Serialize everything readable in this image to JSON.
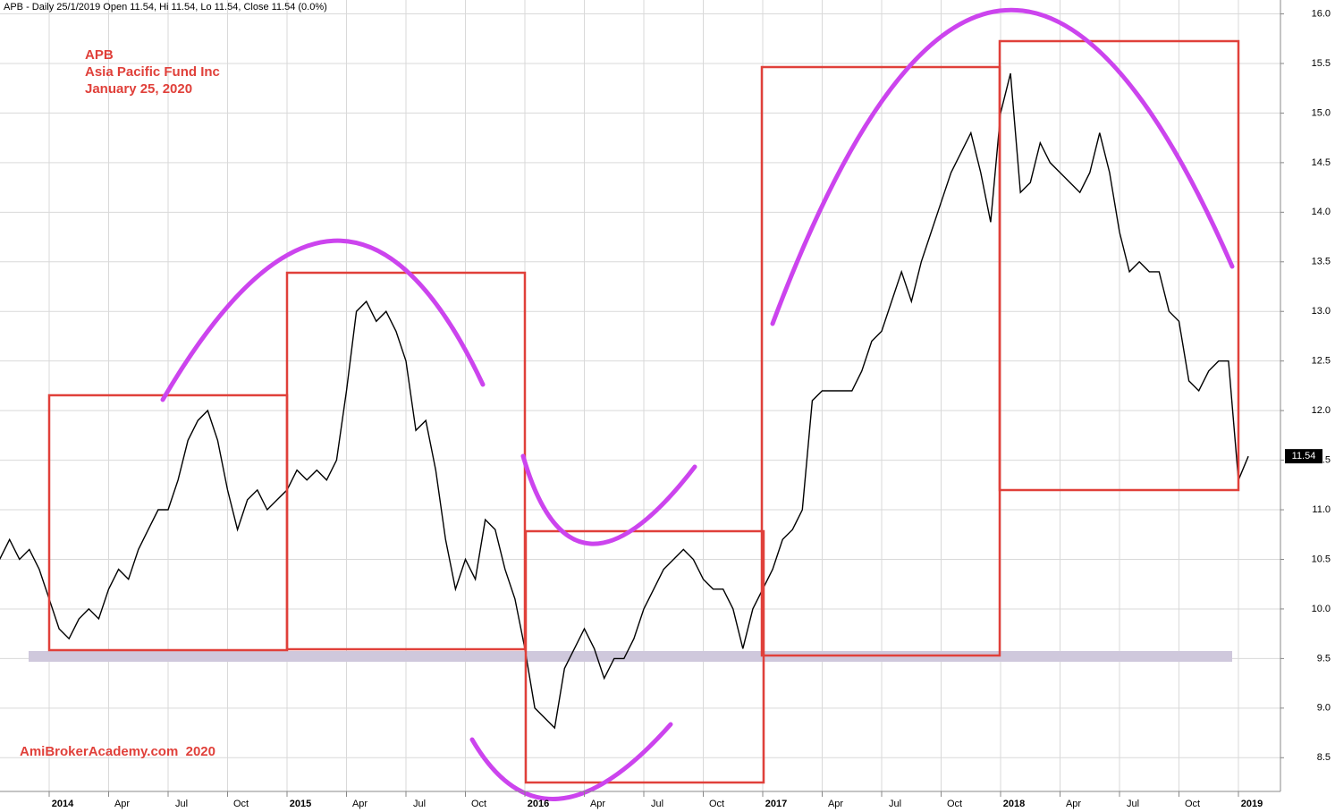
{
  "chart_data": {
    "type": "line",
    "title": "APB - Daily 25/1/2019 Open 11.54, Hi 11.54, Lo 11.54, Close 11.54 (0.0%)",
    "annotations": [
      "APB",
      "Asia Pacific Fund Inc",
      "January 25, 2020",
      "AmiBrokerAcademy.com  2020"
    ],
    "last_price": 11.54,
    "color": "#000000",
    "grid": true,
    "categories": [
      null,
      null,
      null,
      null,
      null,
      "2014",
      null,
      null,
      null,
      null,
      null,
      "Apr",
      null,
      null,
      null,
      null,
      null,
      "Jul",
      null,
      null,
      null,
      null,
      null,
      "Oct",
      null,
      null,
      null,
      null,
      null,
      "2015",
      null,
      null,
      null,
      null,
      null,
      "Apr",
      null,
      null,
      null,
      null,
      null,
      "Jul",
      null,
      null,
      null,
      null,
      null,
      "Oct",
      null,
      null,
      null,
      null,
      null,
      "2016",
      null,
      null,
      null,
      null,
      null,
      "Apr",
      null,
      null,
      null,
      null,
      null,
      "Jul",
      null,
      null,
      null,
      null,
      null,
      "Oct",
      null,
      null,
      null,
      null,
      null,
      "2017",
      null,
      null,
      null,
      null,
      null,
      "Apr",
      null,
      null,
      null,
      null,
      null,
      "Jul",
      null,
      null,
      null,
      null,
      null,
      "Oct",
      null,
      null,
      null,
      null,
      null,
      "2018",
      null,
      null,
      null,
      null,
      null,
      "Apr",
      null,
      null,
      null,
      null,
      null,
      "Jul",
      null,
      null,
      null,
      null,
      null,
      "Oct",
      null,
      null,
      null,
      null,
      null,
      "2019",
      null
    ],
    "values": [
      10.5,
      10.7,
      10.5,
      10.6,
      10.4,
      10.1,
      9.8,
      9.7,
      9.9,
      10.0,
      9.9,
      10.2,
      10.4,
      10.3,
      10.6,
      10.8,
      11.0,
      11.0,
      11.3,
      11.7,
      11.9,
      12.0,
      11.7,
      11.2,
      10.8,
      11.1,
      11.2,
      11.0,
      11.1,
      11.2,
      11.4,
      11.3,
      11.4,
      11.3,
      11.5,
      12.2,
      13.0,
      13.1,
      12.9,
      13.0,
      12.8,
      12.5,
      11.8,
      11.9,
      11.4,
      10.7,
      10.2,
      10.5,
      10.3,
      10.9,
      10.8,
      10.4,
      10.1,
      9.6,
      9.0,
      8.9,
      8.8,
      9.4,
      9.6,
      9.8,
      9.6,
      9.3,
      9.5,
      9.5,
      9.7,
      10.0,
      10.2,
      10.4,
      10.5,
      10.6,
      10.5,
      10.3,
      10.2,
      10.2,
      10.0,
      9.6,
      10.0,
      10.2,
      10.4,
      10.7,
      10.8,
      11.0,
      12.1,
      12.2,
      12.2,
      12.2,
      12.2,
      12.4,
      12.7,
      12.8,
      13.1,
      13.4,
      13.1,
      13.5,
      13.8,
      14.1,
      14.4,
      14.6,
      14.8,
      14.4,
      13.9,
      15.0,
      15.4,
      14.2,
      14.3,
      14.7,
      14.5,
      14.4,
      14.3,
      14.2,
      14.4,
      14.8,
      14.4,
      13.8,
      13.4,
      13.5,
      13.4,
      13.4,
      13.0,
      12.9,
      12.3,
      12.2,
      12.4,
      12.5,
      12.5,
      11.3,
      11.54
    ],
    "ylim": [
      8.16,
      16.14
    ],
    "yticks": [
      8.5,
      {
        "value": 9,
        "label": "9.0"
      },
      9.5,
      {
        "value": 10,
        "label": "10.0"
      },
      10.5,
      {
        "value": 11,
        "label": "11.0"
      },
      11.5,
      {
        "value": 12,
        "label": "12.0"
      },
      12.5,
      {
        "value": 13,
        "label": "13.0"
      },
      13.5,
      {
        "value": 14,
        "label": "14.0"
      },
      14.5,
      {
        "value": 15,
        "label": "15.0"
      },
      15.5,
      {
        "value": 16,
        "label": "16.0"
      }
    ]
  }
}
